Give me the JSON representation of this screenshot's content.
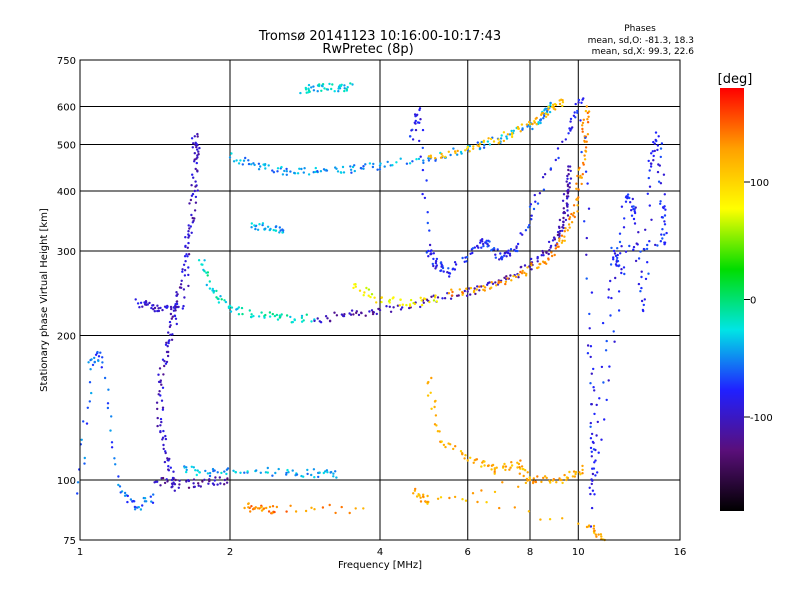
{
  "chart_data": {
    "type": "scatter",
    "title": "Tromsø 20141123 10:16:00-10:17:43",
    "subtitle": "RwPretec (8p)",
    "xlabel": "Frequency [MHz]",
    "ylabel": "Stationary phase Virtual Height [km]",
    "xscale": "log",
    "yscale": "log",
    "xlim": [
      1,
      16
    ],
    "ylim": [
      75,
      750
    ],
    "xticks": [
      {
        "value": 1,
        "label": "1"
      },
      {
        "value": 2,
        "label": "2"
      },
      {
        "value": 4,
        "label": "4"
      },
      {
        "value": 6,
        "label": "6"
      },
      {
        "value": 8,
        "label": "8"
      },
      {
        "value": 10,
        "label": "10"
      },
      {
        "value": 16,
        "label": "16"
      }
    ],
    "yticks": [
      {
        "value": 75,
        "label": "75"
      },
      {
        "value": 100,
        "label": "100"
      },
      {
        "value": 200,
        "label": "200"
      },
      {
        "value": 300,
        "label": "300"
      },
      {
        "value": 400,
        "label": "400"
      },
      {
        "value": 500,
        "label": "500"
      },
      {
        "value": 600,
        "label": "600"
      },
      {
        "value": 750,
        "label": "750"
      }
    ],
    "grid": true,
    "legend": {
      "title": "Phases",
      "lines": [
        "mean, sd,O:  -81.3, 18.3",
        "mean, sd,X:  99.3, 22.6"
      ],
      "placement": "top-right"
    },
    "colorbar": {
      "label": "[deg]",
      "range": [
        -180,
        180
      ],
      "ticks": [
        {
          "value": 100,
          "label": "100"
        },
        {
          "value": 0,
          "label": "0"
        },
        {
          "value": -100,
          "label": "-100"
        }
      ],
      "colors": [
        "#000000",
        "#5a0f7a",
        "#2020ff",
        "#00e5e5",
        "#00dd00",
        "#ffff00",
        "#ffa000",
        "#ff0000"
      ]
    },
    "series": [
      {
        "points": [
          [
            1.55,
            95
          ],
          [
            1.5,
            110
          ],
          [
            1.45,
            130
          ],
          [
            1.45,
            160
          ],
          [
            1.5,
            190
          ],
          [
            1.55,
            220
          ],
          [
            1.6,
            260
          ],
          [
            1.65,
            320
          ],
          [
            1.7,
            400
          ],
          [
            1.7,
            520
          ],
          [
            1.72,
            470
          ],
          [
            1.62,
            240
          ]
        ],
        "phase": -100
      },
      {
        "points": [
          [
            1.3,
            235
          ],
          [
            1.4,
            230
          ],
          [
            1.5,
            226
          ],
          [
            1.6,
            230
          ]
        ],
        "phase": -95
      },
      {
        "points": [
          [
            1.75,
            290
          ],
          [
            1.85,
            245
          ],
          [
            2.0,
            228
          ],
          [
            2.3,
            221
          ],
          [
            2.6,
            217
          ],
          [
            3.0,
            217
          ]
        ],
        "phase": -20
      },
      {
        "points": [
          [
            3.0,
            217
          ],
          [
            3.5,
            221
          ],
          [
            4.0,
            226
          ],
          [
            5.0,
            236
          ],
          [
            6.0,
            247
          ],
          [
            7.0,
            260
          ],
          [
            8.0,
            278
          ],
          [
            8.8,
            305
          ],
          [
            9.2,
            330
          ],
          [
            9.4,
            360
          ],
          [
            9.5,
            400
          ],
          [
            9.55,
            450
          ]
        ],
        "phase": -105
      },
      {
        "points": [
          [
            3.5,
            255
          ],
          [
            4.0,
            238
          ],
          [
            4.6,
            234
          ],
          [
            5.3,
            238
          ]
        ],
        "phase": 80
      },
      {
        "points": [
          [
            5.5,
            245
          ],
          [
            6.5,
            252
          ],
          [
            7.5,
            265
          ],
          [
            8.5,
            285
          ],
          [
            9.3,
            315
          ],
          [
            9.8,
            360
          ],
          [
            10.1,
            430
          ],
          [
            10.3,
            520
          ],
          [
            10.4,
            600
          ]
        ],
        "phase": 130
      },
      {
        "points": [
          [
            2.0,
            470
          ],
          [
            2.3,
            450
          ],
          [
            2.6,
            440
          ],
          [
            3.0,
            438
          ],
          [
            3.5,
            443
          ],
          [
            4.0,
            452
          ],
          [
            5.0,
            468
          ],
          [
            6.0,
            490
          ],
          [
            7.0,
            515
          ],
          [
            8.0,
            545
          ],
          [
            8.6,
            580
          ],
          [
            8.8,
            610
          ]
        ],
        "phase": -45
      },
      {
        "points": [
          [
            5.0,
            470
          ],
          [
            6.0,
            490
          ],
          [
            7.0,
            515
          ],
          [
            8.0,
            550
          ],
          [
            8.8,
            590
          ],
          [
            9.3,
            620
          ]
        ],
        "phase": 110
      },
      {
        "points": [
          [
            1.6,
            105
          ],
          [
            1.8,
            104
          ],
          [
            2.1,
            104
          ],
          [
            2.6,
            104
          ],
          [
            3.0,
            103
          ],
          [
            3.3,
            103
          ]
        ],
        "phase": -40
      },
      {
        "points": [
          [
            1.4,
            100
          ],
          [
            1.6,
            98
          ],
          [
            1.8,
            99
          ],
          [
            2.0,
            100
          ]
        ],
        "phase": -110
      },
      {
        "points": [
          [
            2.15,
            88
          ],
          [
            2.3,
            87
          ],
          [
            2.5,
            87
          ],
          [
            3.8,
            87
          ]
        ],
        "phase": 135
      },
      {
        "points": [
          [
            2.8,
            652
          ],
          [
            3.0,
            655
          ],
          [
            3.3,
            658
          ],
          [
            3.5,
            660
          ]
        ],
        "phase": -30
      },
      {
        "points": [
          [
            2.2,
            340
          ],
          [
            2.4,
            335
          ],
          [
            2.6,
            330
          ]
        ],
        "phase": -40
      },
      {
        "points": [
          [
            1.0,
            95
          ],
          [
            1.05,
            175
          ],
          [
            1.1,
            185
          ],
          [
            1.2,
            97
          ],
          [
            1.3,
            88
          ],
          [
            1.4,
            92
          ]
        ],
        "phase": -60
      },
      {
        "points": [
          [
            4.6,
            520
          ],
          [
            4.8,
            590
          ],
          [
            5.0,
            300
          ],
          [
            5.2,
            280
          ],
          [
            5.5,
            270
          ],
          [
            6.2,
            305
          ],
          [
            6.6,
            315
          ],
          [
            7.0,
            290
          ],
          [
            7.5,
            300
          ],
          [
            8.2,
            380
          ],
          [
            9.6,
            540
          ],
          [
            10.2,
            620
          ],
          [
            10.6,
            190
          ],
          [
            10.7,
            120
          ],
          [
            10.7,
            95
          ],
          [
            11.5,
            240
          ],
          [
            12.5,
            390
          ],
          [
            13.0,
            360
          ],
          [
            13.5,
            225
          ],
          [
            14.0,
            450
          ],
          [
            14.5,
            520
          ],
          [
            14.8,
            370
          ],
          [
            14.9,
            310
          ],
          [
            11.8,
            300
          ],
          [
            12.2,
            270
          ],
          [
            10.6,
            80
          ]
        ],
        "phase": -80
      },
      {
        "points": [
          [
            5.0,
            160
          ],
          [
            5.3,
            120
          ],
          [
            6.2,
            110
          ],
          [
            6.8,
            105
          ],
          [
            7.6,
            108
          ],
          [
            8.0,
            100
          ],
          [
            9.2,
            100
          ],
          [
            10.2,
            105
          ],
          [
            5.0,
            90
          ],
          [
            4.7,
            95
          ],
          [
            10.5,
            80
          ],
          [
            11.3,
            75
          ]
        ],
        "phase": 120
      }
    ]
  }
}
